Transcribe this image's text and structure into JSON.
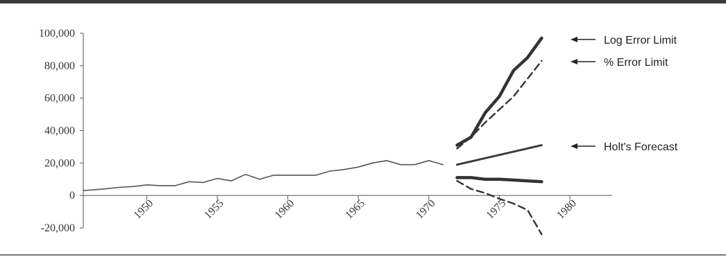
{
  "chart_data": {
    "type": "line",
    "title": "",
    "xlabel": "",
    "ylabel": "",
    "xlim": [
      1945.5,
      1983
    ],
    "ylim": [
      -20000,
      100000
    ],
    "x_ticks": [
      1950,
      1955,
      1960,
      1965,
      1970,
      1975,
      1980
    ],
    "y_ticks": [
      {
        "value": -20000,
        "label": "-20,000"
      },
      {
        "value": 0,
        "label": "0"
      },
      {
        "value": 20000,
        "label": "20,000"
      },
      {
        "value": 40000,
        "label": "40,000"
      },
      {
        "value": 60000,
        "label": "60,000"
      },
      {
        "value": 80000,
        "label": "80,000"
      },
      {
        "value": 100000,
        "label": "100,000"
      }
    ],
    "grid": false,
    "legend": "none",
    "series": [
      {
        "style": "thin",
        "x": [
          1945.5,
          1947,
          1948,
          1949,
          1950,
          1951,
          1952,
          1953,
          1954,
          1955,
          1956,
          1957,
          1958,
          1959,
          1960,
          1961,
          1962,
          1963,
          1964,
          1965,
          1966,
          1967,
          1968,
          1969,
          1970,
          1971
        ],
        "y": [
          3000,
          4000,
          5000,
          5500,
          6500,
          6000,
          6000,
          8500,
          8000,
          10500,
          9000,
          13000,
          10000,
          12500,
          12500,
          12500,
          12500,
          15000,
          16000,
          17500,
          20000,
          21500,
          19000,
          19000,
          21500,
          19000
        ]
      },
      {
        "name": "Log Error Limit",
        "style": "thick",
        "x": [
          1972,
          1973,
          1974,
          1975,
          1976,
          1977,
          1978
        ],
        "y": [
          31000,
          36000,
          51000,
          61000,
          77000,
          85000,
          97000
        ]
      },
      {
        "name": "% Error Limit",
        "style": "dashed",
        "x": [
          1972,
          1973,
          1974,
          1975,
          1976,
          1977,
          1978
        ],
        "y": [
          29000,
          36000,
          45000,
          53000,
          61000,
          72000,
          83000
        ]
      },
      {
        "name": "Holt's Forecast",
        "style": "medium",
        "x": [
          1972,
          1978
        ],
        "y": [
          19000,
          31000
        ]
      },
      {
        "style": "thick",
        "x": [
          1972,
          1973,
          1974,
          1975,
          1976,
          1977,
          1978
        ],
        "y": [
          11000,
          11000,
          10000,
          10000,
          9500,
          9000,
          8500
        ]
      },
      {
        "style": "dashed",
        "x": [
          1972,
          1973,
          1974,
          1975,
          1976,
          1977,
          1978
        ],
        "y": [
          9000,
          4000,
          1500,
          -2000,
          -5000,
          -9000,
          -24000
        ]
      }
    ],
    "annotations": [
      {
        "label": "Log Error Limit",
        "series_index": 1
      },
      {
        "label": "% Error Limit",
        "series_index": 2
      },
      {
        "label": "Holt's Forecast",
        "series_index": 3
      }
    ]
  }
}
